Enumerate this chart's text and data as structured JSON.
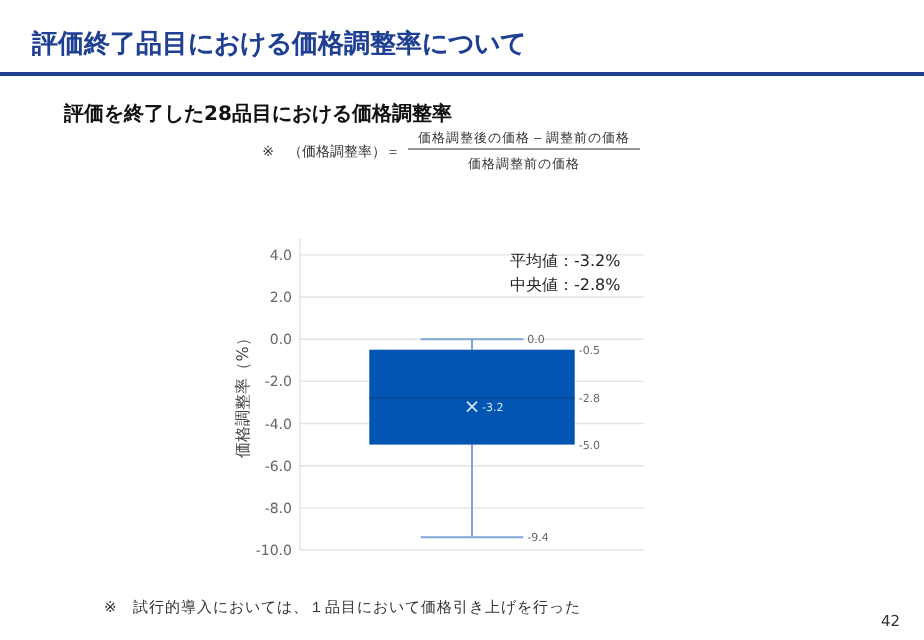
{
  "chart_data": {
    "type": "box",
    "title": "評価終了品目における価格調整率について",
    "subtitle": "評価を終了した28品目における価格調整率",
    "ylabel": "価格調整率（%）",
    "categories": [
      null
    ],
    "boxes": [
      {
        "low": -9.4,
        "q1": -5.0,
        "median": -2.8,
        "q3": -0.5,
        "high": 0.0,
        "mean": -3.2
      }
    ],
    "color": "#0055b3",
    "ylim": [
      -10,
      4.8
    ],
    "yticks": [
      {
        "value": -10,
        "label": "-10.0"
      },
      {
        "value": -8,
        "label": "-8.0"
      },
      {
        "value": -6,
        "label": "-6.0"
      },
      {
        "value": -4,
        "label": "-4.0"
      },
      {
        "value": -2,
        "label": "-2.0"
      },
      {
        "value": 0,
        "label": "0.0"
      },
      {
        "value": 2,
        "label": "2.0"
      },
      {
        "value": 4,
        "label": "4.0"
      }
    ],
    "grid": "y",
    "annotations": [
      "※　（価格調整率）＝",
      "価格調整後の価格 ‒ 調整前の価格",
      "価格調整前の価格",
      "平均値：-3.2%",
      "中央値：-2.8%",
      "※　試行的導入においては、１品目において価格引き上げを行った",
      "42",
      "0.0",
      "-0.5",
      "-2.8",
      "-5.0",
      "-9.4",
      "-3.2"
    ]
  }
}
